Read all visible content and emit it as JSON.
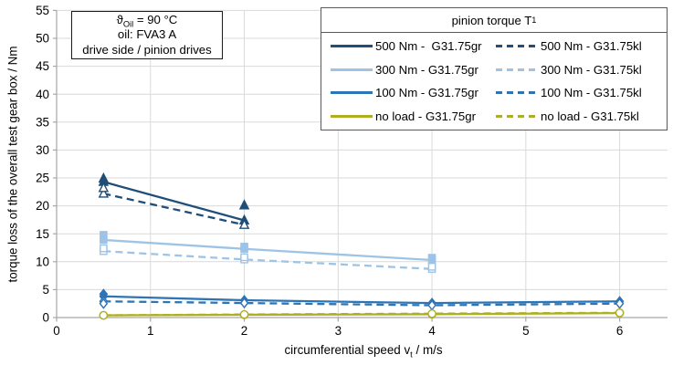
{
  "annotation": {
    "line1": {
      "pre": "ϑ",
      "sub": "Oil",
      "post": " = 90 °C"
    },
    "line2": "oil: FVA3 A",
    "line3": "drive side / pinion drives"
  },
  "colors": {
    "dark_blue": "#1F4E79",
    "light_blue": "#9DC3E6",
    "medium_blue": "#2E75B6",
    "olive": "#AEAF20",
    "gridline": "#D9D9D9",
    "axis": "#A6A6A6",
    "text": "#000000",
    "legend_border": "#595959"
  },
  "chart_data": {
    "type": "line",
    "title": "",
    "xlabel_parts": {
      "pre": "circumferential speed v",
      "sub": "t",
      "post": " / m/s"
    },
    "ylabel": "torque loss of the overall test gear box / Nm",
    "xlim": [
      0,
      6.51
    ],
    "ylim": [
      0,
      55
    ],
    "x_ticks": [
      0,
      1,
      2,
      3,
      4,
      5,
      6
    ],
    "x_tick_labels": [
      "0",
      "1",
      "2",
      "3",
      "4",
      "5",
      "6"
    ],
    "y_ticks": [
      0,
      5,
      10,
      15,
      20,
      25,
      30,
      35,
      40,
      45,
      50,
      55
    ],
    "y_tick_labels": [
      "0",
      "5",
      "10",
      "15",
      "20",
      "25",
      "30",
      "35",
      "40",
      "45",
      "50",
      "55"
    ],
    "grid": true,
    "legend_title_parts": {
      "pre": "pinion torque T",
      "sub": "1"
    },
    "legend_position": "top-right",
    "series": [
      {
        "id": "500nm-gr",
        "label": "500 Nm -  G31.75gr",
        "color": "#1F4E79",
        "dash": false,
        "marker": "triangle",
        "points": [
          [
            0.5,
            24.3
          ],
          [
            2,
            17.4
          ]
        ],
        "extra_points": [
          [
            0.5,
            24.9
          ],
          [
            2,
            20.1
          ]
        ]
      },
      {
        "id": "500nm-kl",
        "label": "500 Nm - G31.75kl",
        "color": "#1F4E79",
        "dash": true,
        "marker": "triangle",
        "points": [
          [
            0.5,
            22.2
          ],
          [
            2,
            16.6
          ]
        ],
        "extra_points": [
          [
            0.5,
            23.2
          ]
        ]
      },
      {
        "id": "300nm-gr",
        "label": "300 Nm - G31.75gr",
        "color": "#9DC3E6",
        "dash": false,
        "marker": "square",
        "points": [
          [
            0.5,
            13.9
          ],
          [
            2,
            12.3
          ],
          [
            4,
            10.3
          ]
        ],
        "extra_points": [
          [
            0.5,
            14.8
          ],
          [
            2,
            12.7
          ],
          [
            4,
            10.7
          ]
        ]
      },
      {
        "id": "300nm-kl",
        "label": "300 Nm - G31.75kl",
        "color": "#9DC3E6",
        "dash": true,
        "marker": "square",
        "points": [
          [
            0.5,
            11.9
          ],
          [
            2,
            10.4
          ],
          [
            4,
            8.7
          ]
        ],
        "extra_points": [
          [
            0.5,
            12.4
          ],
          [
            2,
            10.8
          ],
          [
            4,
            9.1
          ]
        ]
      },
      {
        "id": "100nm-gr",
        "label": "100 Nm - G31.75gr",
        "color": "#2E75B6",
        "dash": false,
        "marker": "diamond",
        "points": [
          [
            0.5,
            3.8
          ],
          [
            2,
            3.1
          ],
          [
            4,
            2.6
          ],
          [
            6,
            2.9
          ]
        ],
        "extra_points": [
          [
            0.5,
            4.2
          ]
        ]
      },
      {
        "id": "100nm-kl",
        "label": "100 Nm - G31.75kl",
        "color": "#2E75B6",
        "dash": true,
        "marker": "diamond",
        "points": [
          [
            0.5,
            2.9
          ],
          [
            2,
            2.6
          ],
          [
            4,
            2.2
          ],
          [
            6,
            2.5
          ]
        ],
        "extra_points": [
          [
            0.5,
            2.5
          ]
        ]
      },
      {
        "id": "noload-gr",
        "label": "no load - G31.75gr",
        "color": "#AEAF20",
        "dash": false,
        "marker": "circle",
        "points": [
          [
            0.5,
            0.4
          ],
          [
            2,
            0.5
          ],
          [
            4,
            0.6
          ],
          [
            6,
            0.8
          ]
        ],
        "extra_points": []
      },
      {
        "id": "noload-kl",
        "label": "no load - G31.75kl",
        "color": "#AEAF20",
        "dash": true,
        "marker": "circle",
        "points": [
          [
            0.5,
            0.4
          ],
          [
            2,
            0.55
          ],
          [
            4,
            0.7
          ],
          [
            6,
            0.85
          ]
        ],
        "extra_points": []
      }
    ]
  }
}
